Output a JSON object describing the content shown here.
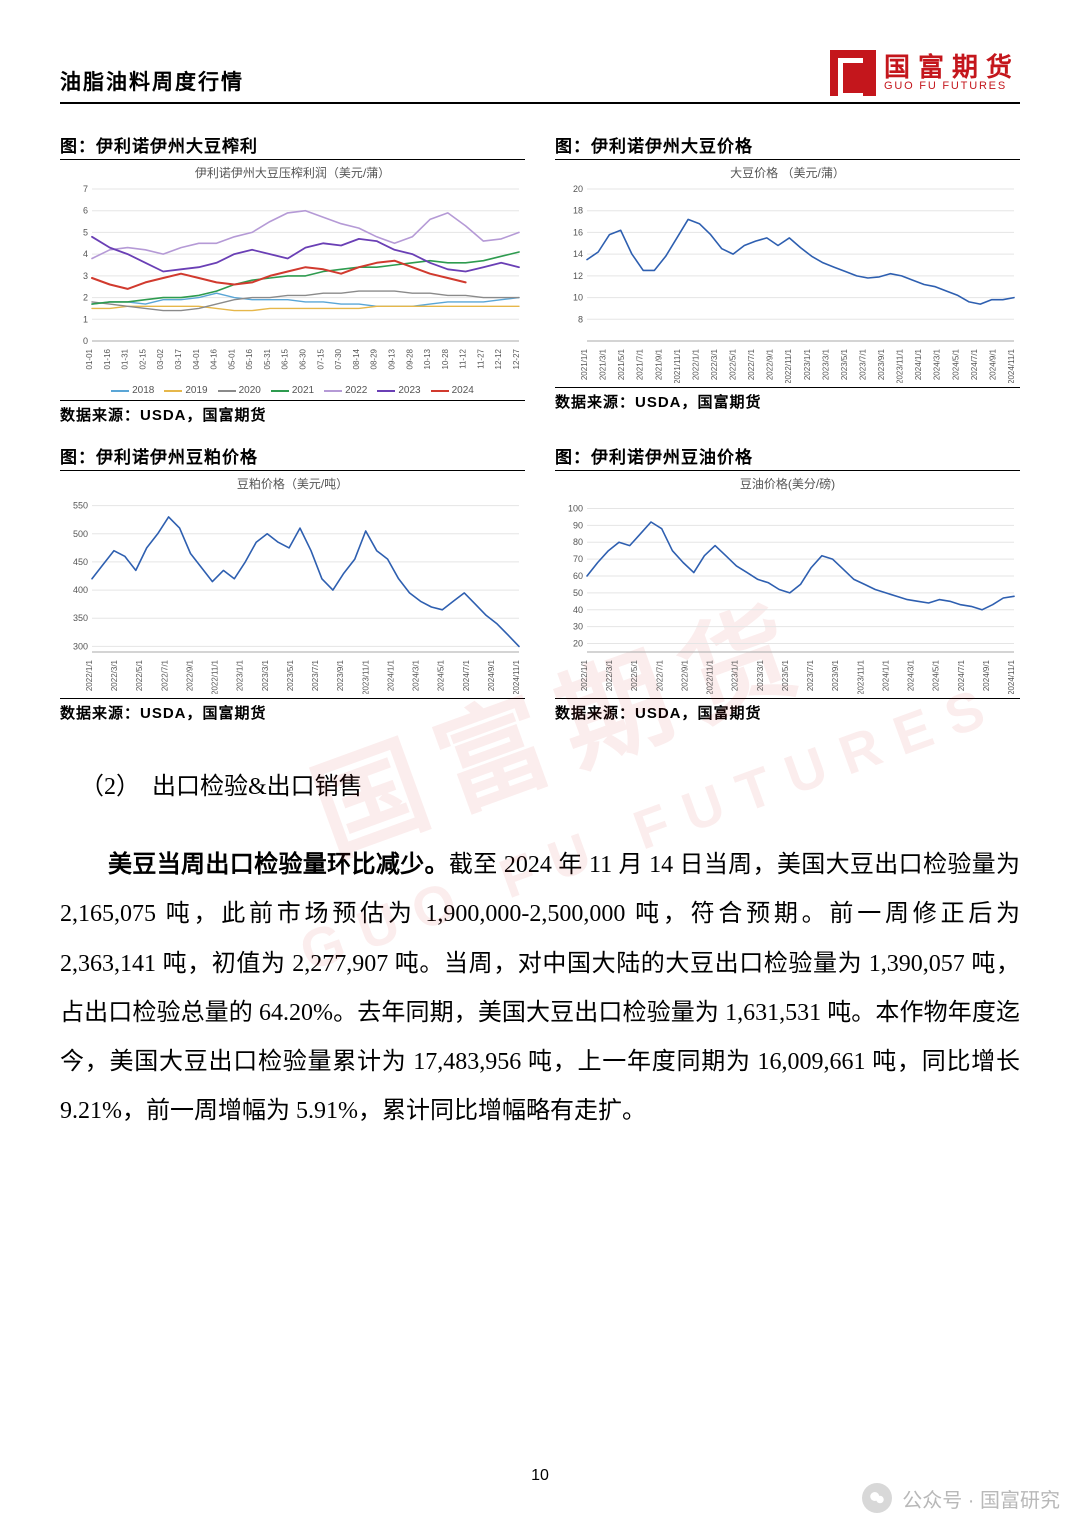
{
  "header": {
    "title": "油脂油料周度行情"
  },
  "logo": {
    "cn": "国富期货",
    "en": "GUO FU FUTURES"
  },
  "watermark": {
    "main": "国富期货",
    "sub": "GUO FU FUTURES"
  },
  "source_label": "数据来源：USDA，国富期货",
  "chart1": {
    "type": "line-multiseries",
    "caption": "图：伊利诺伊州大豆榨利",
    "subtitle": "伊利诺伊州大豆压榨利润（美元/蒲）",
    "ylim": [
      0,
      7
    ],
    "yticks": [
      0,
      1,
      2,
      3,
      4,
      5,
      6,
      7
    ],
    "xlabels": [
      "01-01",
      "01-16",
      "01-31",
      "02-15",
      "03-02",
      "03-17",
      "04-01",
      "04-16",
      "05-01",
      "05-16",
      "05-31",
      "06-15",
      "06-30",
      "07-15",
      "07-30",
      "08-14",
      "08-29",
      "09-13",
      "09-28",
      "10-13",
      "10-28",
      "11-12",
      "11-27",
      "12-12",
      "12-27"
    ],
    "grid_color": "#e5e5e5",
    "series": [
      {
        "name": "2018",
        "color": "#5aa6d6",
        "width": 1.4,
        "values": [
          1.7,
          1.8,
          1.8,
          1.7,
          1.9,
          1.9,
          2.0,
          2.2,
          2.0,
          1.9,
          1.9,
          1.9,
          1.8,
          1.8,
          1.7,
          1.7,
          1.6,
          1.6,
          1.6,
          1.7,
          1.8,
          1.8,
          1.8,
          1.9,
          2.0
        ]
      },
      {
        "name": "2019",
        "color": "#e6b74a",
        "width": 1.4,
        "values": [
          1.5,
          1.5,
          1.6,
          1.6,
          1.6,
          1.6,
          1.6,
          1.5,
          1.4,
          1.4,
          1.5,
          1.5,
          1.5,
          1.5,
          1.5,
          1.5,
          1.6,
          1.6,
          1.6,
          1.6,
          1.6,
          1.6,
          1.6,
          1.6,
          1.6
        ]
      },
      {
        "name": "2020",
        "color": "#8a8a8a",
        "width": 1.4,
        "values": [
          1.8,
          1.7,
          1.6,
          1.5,
          1.4,
          1.4,
          1.5,
          1.7,
          1.9,
          2.0,
          2.0,
          2.1,
          2.1,
          2.2,
          2.2,
          2.3,
          2.3,
          2.3,
          2.2,
          2.2,
          2.1,
          2.1,
          2.0,
          2.0,
          2.0
        ]
      },
      {
        "name": "2021",
        "color": "#2e9b4f",
        "width": 1.6,
        "values": [
          1.7,
          1.8,
          1.8,
          1.9,
          2.0,
          2.0,
          2.1,
          2.3,
          2.6,
          2.8,
          2.9,
          3.0,
          3.0,
          3.2,
          3.3,
          3.4,
          3.4,
          3.5,
          3.6,
          3.7,
          3.6,
          3.6,
          3.7,
          3.9,
          4.1
        ]
      },
      {
        "name": "2022",
        "color": "#b59ad6",
        "width": 1.6,
        "values": [
          3.8,
          4.2,
          4.3,
          4.2,
          4.0,
          4.3,
          4.5,
          4.5,
          4.8,
          5.0,
          5.5,
          5.9,
          6.0,
          5.7,
          5.4,
          5.2,
          4.8,
          4.5,
          4.8,
          5.6,
          5.9,
          5.3,
          4.6,
          4.7,
          5.0
        ]
      },
      {
        "name": "2023",
        "color": "#6a3fb5",
        "width": 1.8,
        "values": [
          4.8,
          4.3,
          4.0,
          3.6,
          3.2,
          3.3,
          3.4,
          3.6,
          4.0,
          4.2,
          4.0,
          3.8,
          4.3,
          4.5,
          4.4,
          4.7,
          4.6,
          4.2,
          4.0,
          3.6,
          3.3,
          3.2,
          3.4,
          3.6,
          3.4
        ]
      },
      {
        "name": "2024",
        "color": "#d13a2e",
        "width": 2.0,
        "values": [
          2.9,
          2.6,
          2.4,
          2.7,
          2.9,
          3.1,
          2.9,
          2.7,
          2.6,
          2.7,
          3.0,
          3.2,
          3.4,
          3.3,
          3.1,
          3.4,
          3.6,
          3.7,
          3.4,
          3.1,
          2.9,
          2.7,
          null,
          null,
          null
        ]
      }
    ]
  },
  "chart2": {
    "type": "line",
    "caption": "图：伊利诺伊州大豆价格",
    "subtitle": "大豆价格 （美元/蒲）",
    "ylim": [
      6,
      20
    ],
    "yticks": [
      8,
      10,
      12,
      14,
      16,
      18,
      20
    ],
    "color": "#2e5fb0",
    "line_width": 1.6,
    "grid_color": "#e5e5e5",
    "xlabels": [
      "2021/1/1",
      "2021/3/1",
      "2021/5/1",
      "2021/7/1",
      "2021/9/1",
      "2021/11/1",
      "2022/1/1",
      "2022/3/1",
      "2022/5/1",
      "2022/7/1",
      "2022/9/1",
      "2022/11/1",
      "2023/1/1",
      "2023/3/1",
      "2023/5/1",
      "2023/7/1",
      "2023/9/1",
      "2023/11/1",
      "2024/1/1",
      "2024/3/1",
      "2024/5/1",
      "2024/7/1",
      "2024/9/1",
      "2024/11/1"
    ],
    "values": [
      13.5,
      14.2,
      15.8,
      16.2,
      14.0,
      12.5,
      12.5,
      13.8,
      15.5,
      17.2,
      16.8,
      15.8,
      14.5,
      14.0,
      14.8,
      15.2,
      15.5,
      14.8,
      15.5,
      14.6,
      13.8,
      13.2,
      12.8,
      12.4,
      12.0,
      11.8,
      11.9,
      12.2,
      12.0,
      11.6,
      11.2,
      11.0,
      10.6,
      10.2,
      9.6,
      9.4,
      9.8,
      9.8,
      10.0
    ]
  },
  "chart3": {
    "type": "line",
    "caption": "图：伊利诺伊州豆粕价格",
    "subtitle": "豆粕价格（美元/吨）",
    "ylim": [
      290,
      560
    ],
    "yticks": [
      300,
      350,
      400,
      450,
      500,
      550
    ],
    "color": "#2e5fb0",
    "line_width": 1.6,
    "grid_color": "#e5e5e5",
    "xlabels": [
      "2022/1/1",
      "2022/3/1",
      "2022/5/1",
      "2022/7/1",
      "2022/9/1",
      "2022/11/1",
      "2023/1/1",
      "2023/3/1",
      "2023/5/1",
      "2023/7/1",
      "2023/9/1",
      "2023/11/1",
      "2024/1/1",
      "2024/3/1",
      "2024/5/1",
      "2024/7/1",
      "2024/9/1",
      "2024/11/1"
    ],
    "values": [
      420,
      445,
      470,
      460,
      435,
      475,
      500,
      530,
      510,
      465,
      440,
      415,
      435,
      420,
      450,
      485,
      500,
      485,
      475,
      510,
      470,
      420,
      400,
      430,
      455,
      505,
      470,
      455,
      420,
      395,
      380,
      370,
      365,
      380,
      395,
      375,
      355,
      340,
      320,
      300
    ]
  },
  "chart4": {
    "type": "line",
    "caption": "图：伊利诺伊州豆油价格",
    "subtitle": "豆油价格(美分/磅)",
    "ylim": [
      15,
      105
    ],
    "yticks": [
      20,
      30,
      40,
      50,
      60,
      70,
      80,
      90,
      100
    ],
    "color": "#2e5fb0",
    "line_width": 1.6,
    "grid_color": "#e5e5e5",
    "xlabels": [
      "2022/1/1",
      "2022/3/1",
      "2022/5/1",
      "2022/7/1",
      "2022/9/1",
      "2022/11/1",
      "2023/1/1",
      "2023/3/1",
      "2023/5/1",
      "2023/7/1",
      "2023/9/1",
      "2023/11/1",
      "2024/1/1",
      "2024/3/1",
      "2024/5/1",
      "2024/7/1",
      "2024/9/1",
      "2024/11/1"
    ],
    "values": [
      60,
      68,
      75,
      80,
      78,
      85,
      92,
      88,
      75,
      68,
      62,
      72,
      78,
      72,
      66,
      62,
      58,
      56,
      52,
      50,
      55,
      65,
      72,
      70,
      64,
      58,
      55,
      52,
      50,
      48,
      46,
      45,
      44,
      46,
      45,
      43,
      42,
      40,
      43,
      47,
      48
    ]
  },
  "section": {
    "num": "（2）",
    "title": "出口检验&出口销售"
  },
  "para": {
    "bold": "美豆当周出口检验量环比减少。",
    "rest": "截至 2024 年 11 月 14 日当周，美国大豆出口检验量为 2,165,075 吨，此前市场预估为 1,900,000-2,500,000 吨，符合预期。前一周修正后为 2,363,141 吨，初值为 2,277,907 吨。当周，对中国大陆的大豆出口检验量为 1,390,057 吨，占出口检验总量的 64.20%。去年同期，美国大豆出口检验量为 1,631,531 吨。本作物年度迄今，美国大豆出口检验量累计为 17,483,956 吨，上一年度同期为 16,009,661 吨，同比增长 9.21%，前一周增幅为 5.91%，累计同比增幅略有走扩。"
  },
  "page_number": "10",
  "footer": {
    "label": "公众号 · 国富研究"
  }
}
